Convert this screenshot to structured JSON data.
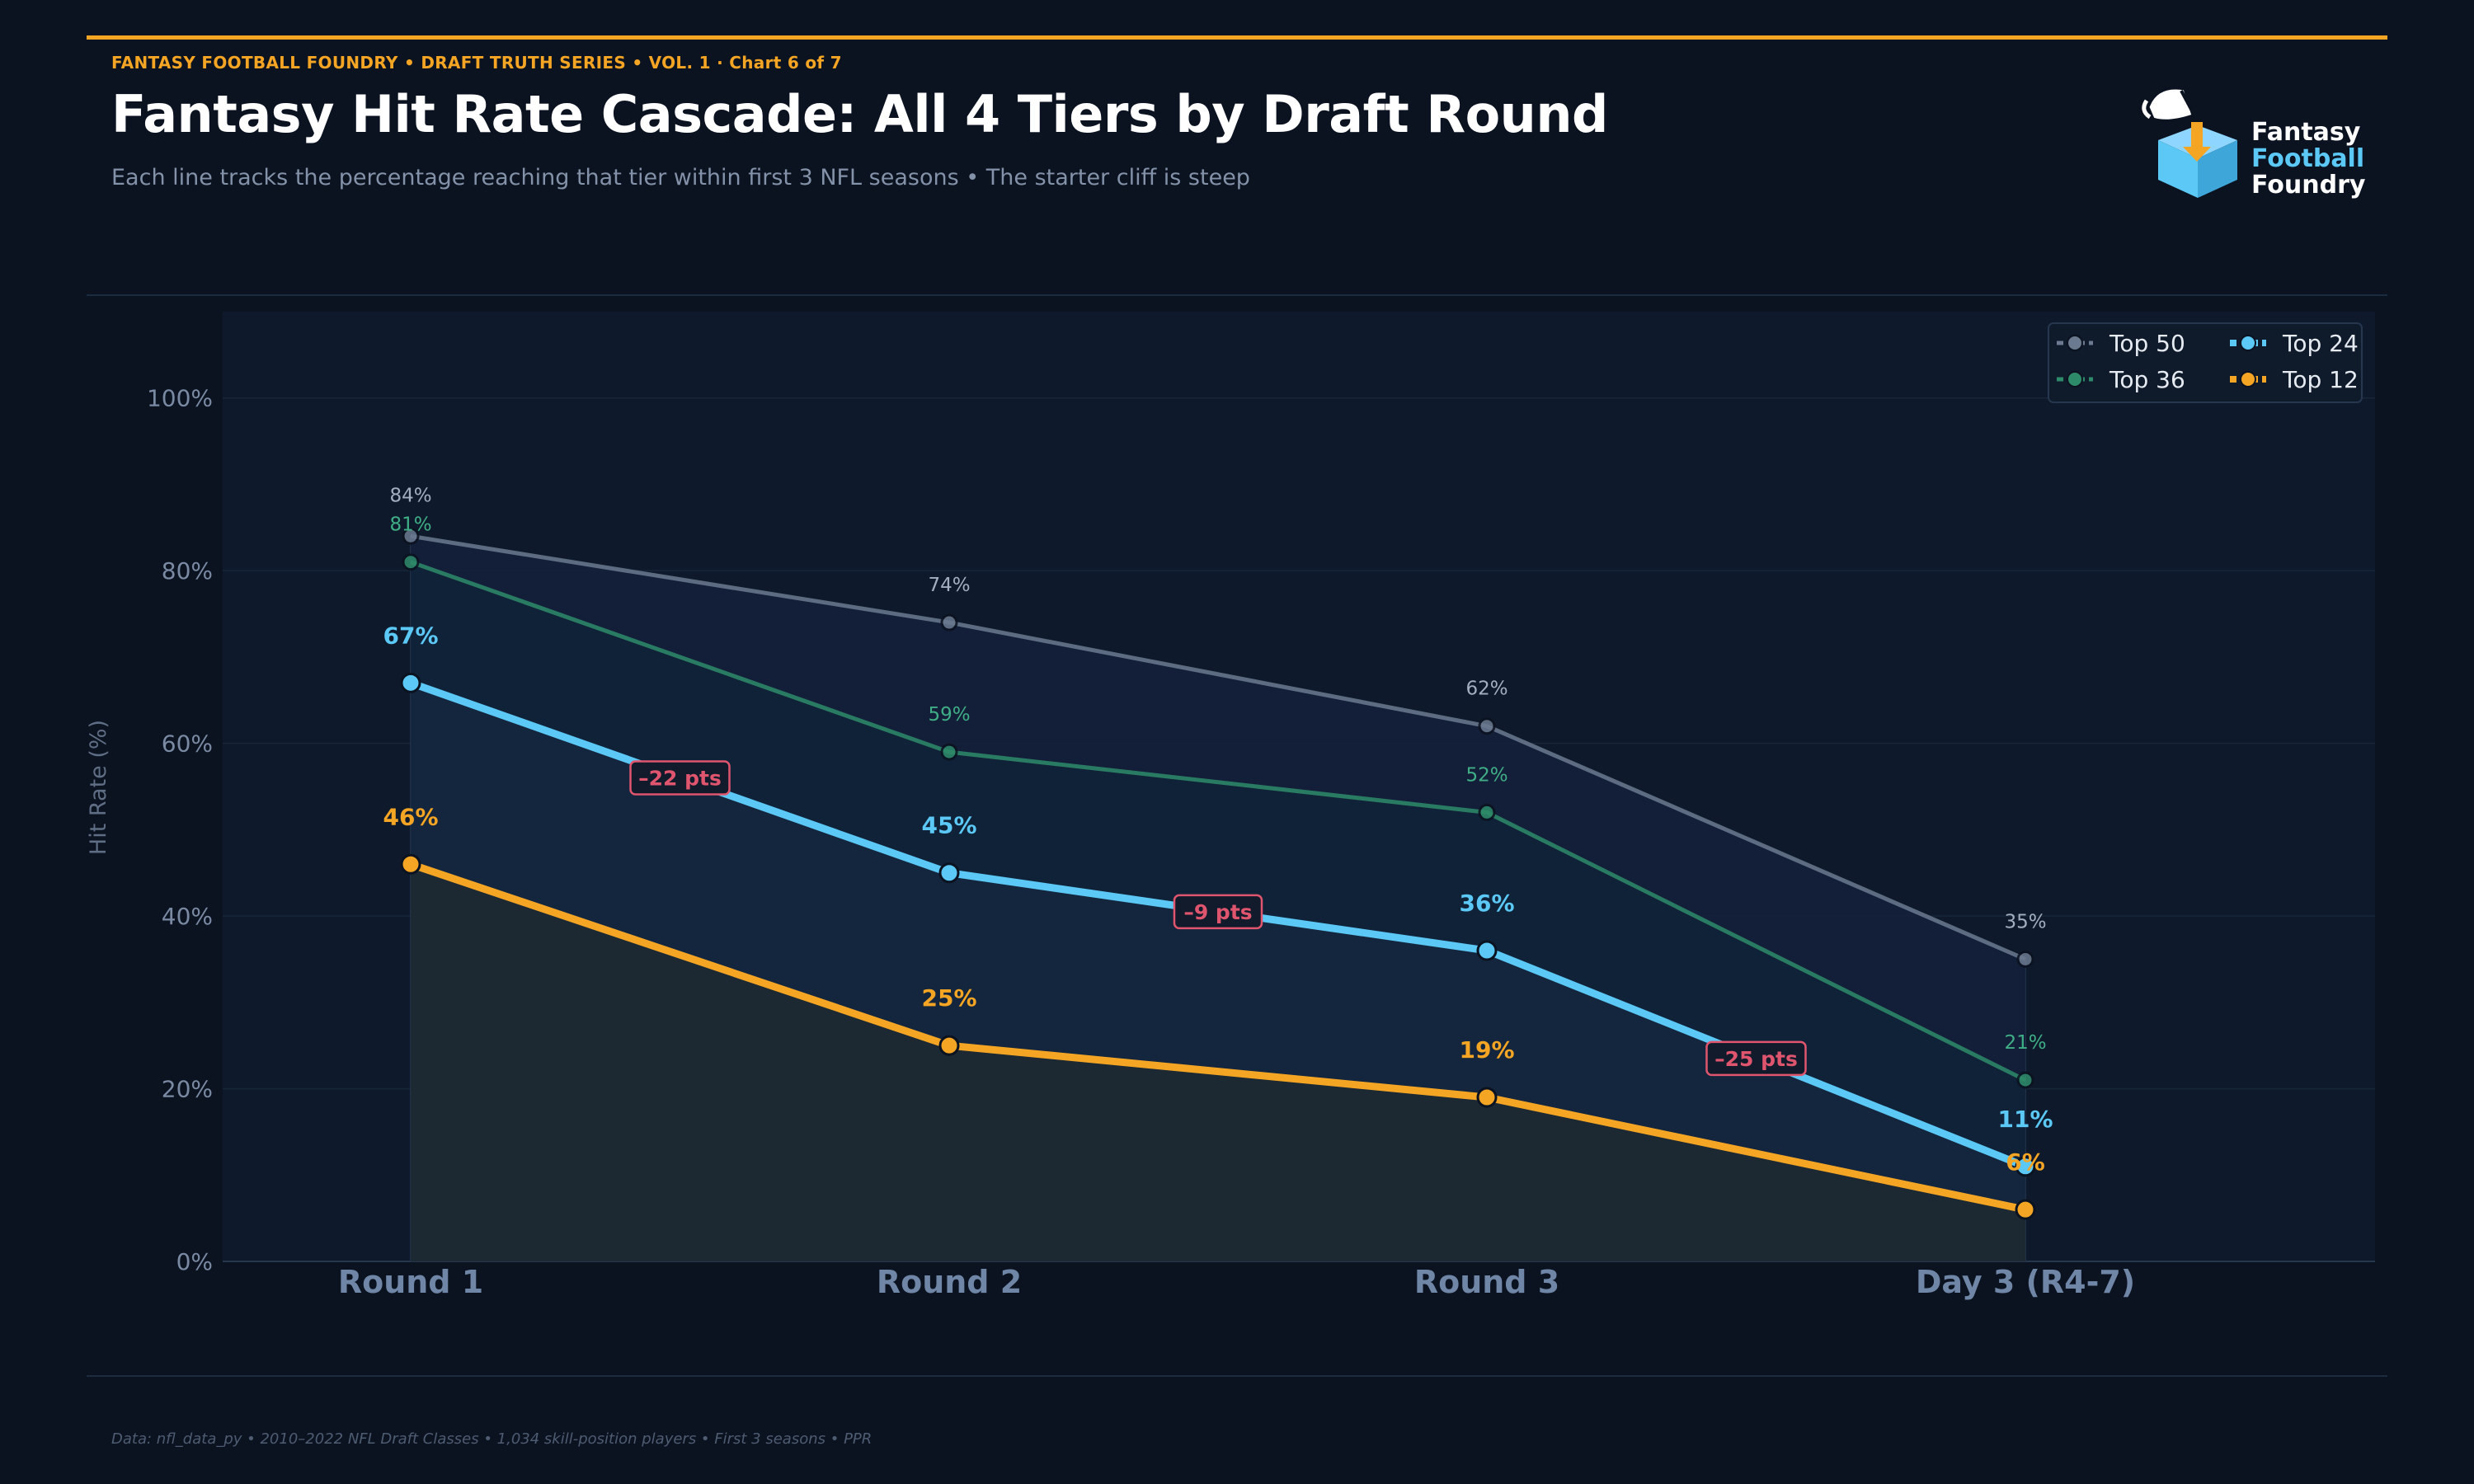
{
  "header": {
    "eyebrow": "FANTASY FOOTBALL FOUNDRY  •  DRAFT TRUTH SERIES  •  VOL. 1  ·  Chart 6 of 7",
    "title": "Fantasy Hit Rate Cascade: All 4 Tiers by Draft Round",
    "subtitle": "Each line tracks the percentage reaching that tier within first 3 NFL seasons  •  The starter cliff is steep"
  },
  "logo": {
    "line1": "Fantasy",
    "line2": "Football",
    "line3": "Foundry",
    "icon": "pouring-bucket-icon"
  },
  "footer": {
    "text": "Data: nfl_data_py  •  2010–2022 NFL Draft Classes  •  1,034 skill-position players  •  First 3 seasons  •  PPR"
  },
  "colors": {
    "background": "#0b1220",
    "plot_bg": "#0e1a2b",
    "accent": "#f5a524",
    "top50": "#6b7a8f",
    "top36": "#2e8b6a",
    "top24": "#5bc8f5",
    "top12": "#f5a524",
    "drop_label": "#e0556e"
  },
  "chart_data": {
    "type": "line",
    "categories": [
      "Round 1",
      "Round 2",
      "Round 3",
      "Day 3 (R4-7)"
    ],
    "ylabel": "Hit Rate (%)",
    "xlabel": "",
    "ylim": [
      0,
      110
    ],
    "yticks": [
      0,
      20,
      40,
      60,
      80,
      100
    ],
    "ytick_labels": [
      "0%",
      "20%",
      "40%",
      "60%",
      "80%",
      "100%"
    ],
    "grid": true,
    "legend": "top-right",
    "series": [
      {
        "name": "Top 50",
        "values": [
          84,
          74,
          62,
          35
        ],
        "labels": [
          "84%",
          "74%",
          "62%",
          "35%"
        ],
        "color": "#6b7a8f"
      },
      {
        "name": "Top 36",
        "values": [
          81,
          59,
          52,
          21
        ],
        "labels": [
          "81%",
          "59%",
          "52%",
          "21%"
        ],
        "color": "#2e8b6a"
      },
      {
        "name": "Top 24",
        "values": [
          67,
          45,
          36,
          11
        ],
        "labels": [
          "67%",
          "45%",
          "36%",
          "11%"
        ],
        "color": "#5bc8f5"
      },
      {
        "name": "Top 12",
        "values": [
          46,
          25,
          19,
          6
        ],
        "labels": [
          "46%",
          "25%",
          "19%",
          "6%"
        ],
        "color": "#f5a524"
      }
    ],
    "annotations": [
      {
        "text": "–22 pts",
        "between": [
          0,
          1
        ],
        "series": "Top 24"
      },
      {
        "text": "–9 pts",
        "between": [
          1,
          2
        ],
        "series": "Top 24"
      },
      {
        "text": "–25 pts",
        "between": [
          2,
          3
        ],
        "series": "Top 24"
      }
    ]
  }
}
